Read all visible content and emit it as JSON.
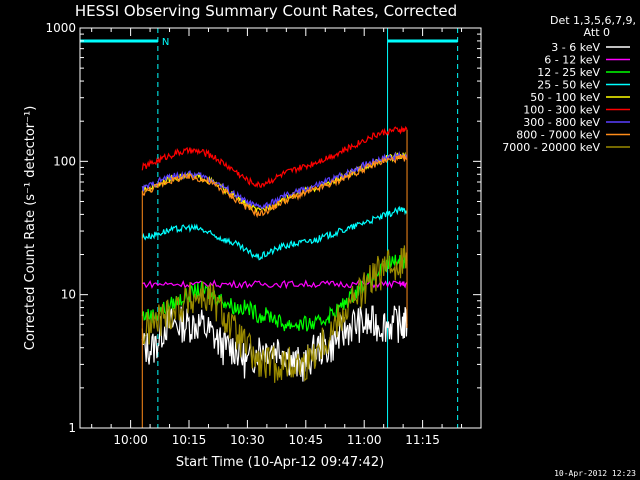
{
  "chart_data": {
    "type": "line",
    "title": "HESSI Observing Summary Count Rates, Corrected",
    "xlabel": "Start Time (10-Apr-12 09:47:42)",
    "ylabel": "Corrected Count Rate (s⁻¹ detector⁻¹)",
    "xlim_minutes": [
      -13,
      90
    ],
    "x_ticks": [
      {
        "minute": 0,
        "label": "10:00"
      },
      {
        "minute": 15,
        "label": "10:15"
      },
      {
        "minute": 30,
        "label": "10:30"
      },
      {
        "minute": 45,
        "label": "10:45"
      },
      {
        "minute": 60,
        "label": "11:00"
      },
      {
        "minute": 75,
        "label": "11:15"
      }
    ],
    "y_scale": "log",
    "ylim": [
      1,
      1000
    ],
    "y_ticks": [
      {
        "value": 1,
        "label": "1"
      },
      {
        "value": 10,
        "label": "10"
      },
      {
        "value": 100,
        "label": "100"
      },
      {
        "value": 1000,
        "label": "1000"
      }
    ],
    "legend_header_1": "Det 1,3,5,6,7,9,",
    "legend_header_2": "Att 0",
    "legend_position": "right",
    "night_label": "N",
    "night_bars": [
      {
        "start_minute": -13,
        "end_minute": 7
      },
      {
        "start_minute": 66,
        "end_minute": 84
      }
    ],
    "solid_cyan_lines": [
      -13,
      66
    ],
    "dashed_cyan_lines": [
      7,
      84
    ],
    "series": [
      {
        "name": "3 - 6 keV",
        "color": "#ffffff",
        "x": [
          3,
          6,
          9,
          12,
          15,
          18,
          21,
          24,
          27,
          30,
          33,
          36,
          39,
          42,
          45,
          48,
          51,
          54,
          57,
          60,
          63,
          66,
          69,
          71
        ],
        "values": [
          4,
          4,
          6,
          6,
          6,
          6,
          5,
          4,
          4,
          3,
          4,
          4,
          4,
          3,
          3,
          4,
          4,
          5,
          6,
          6,
          6,
          6,
          6,
          6
        ]
      },
      {
        "name": "6 - 12 keV",
        "color": "#ff00ff",
        "x": [
          3,
          9,
          15,
          21,
          27,
          33,
          39,
          45,
          51,
          57,
          63,
          69,
          71
        ],
        "values": [
          12,
          12,
          12,
          12,
          12,
          12,
          12,
          12,
          12,
          12,
          12,
          12,
          12
        ]
      },
      {
        "name": "12 - 25 keV",
        "color": "#00ff00",
        "x": [
          3,
          6,
          9,
          12,
          15,
          18,
          21,
          24,
          27,
          30,
          33,
          36,
          39,
          42,
          45,
          48,
          51,
          54,
          57,
          60,
          63,
          66,
          69,
          71
        ],
        "values": [
          7,
          7,
          8,
          9,
          10,
          11,
          10,
          9,
          8,
          8,
          7,
          7,
          6,
          6,
          6,
          6,
          7,
          8,
          10,
          12,
          14,
          17,
          18,
          18
        ]
      },
      {
        "name": "25 - 50 keV",
        "color": "#00ffff",
        "x": [
          3,
          6,
          9,
          12,
          15,
          18,
          21,
          24,
          27,
          30,
          33,
          36,
          39,
          42,
          45,
          48,
          51,
          54,
          57,
          60,
          63,
          66,
          69,
          71
        ],
        "values": [
          27,
          28,
          30,
          31,
          32,
          31,
          28,
          26,
          24,
          21,
          19,
          21,
          23,
          24,
          25,
          26,
          28,
          30,
          32,
          35,
          37,
          40,
          43,
          43
        ]
      },
      {
        "name": "50 - 100 keV",
        "color": "#ffff00",
        "x": [
          3,
          6,
          9,
          12,
          15,
          18,
          21,
          24,
          27,
          30,
          33,
          36,
          39,
          42,
          45,
          48,
          51,
          54,
          57,
          60,
          63,
          66,
          69,
          71
        ],
        "values": [
          60,
          65,
          72,
          76,
          78,
          76,
          70,
          62,
          54,
          47,
          42,
          46,
          52,
          56,
          60,
          64,
          69,
          75,
          82,
          90,
          98,
          106,
          110,
          110
        ]
      },
      {
        "name": "100 - 300 keV",
        "color": "#ff0000",
        "x": [
          3,
          6,
          9,
          12,
          15,
          18,
          21,
          24,
          27,
          30,
          33,
          36,
          39,
          42,
          45,
          48,
          51,
          54,
          57,
          60,
          63,
          66,
          69,
          71
        ],
        "values": [
          90,
          98,
          108,
          116,
          120,
          118,
          110,
          96,
          84,
          72,
          66,
          72,
          80,
          86,
          92,
          100,
          108,
          118,
          130,
          145,
          158,
          168,
          172,
          172
        ]
      },
      {
        "name": "300 - 800 keV",
        "color": "#5a3fff",
        "x": [
          3,
          6,
          9,
          12,
          15,
          18,
          21,
          24,
          27,
          30,
          33,
          36,
          39,
          42,
          45,
          48,
          51,
          54,
          57,
          60,
          63,
          66,
          69,
          71
        ],
        "values": [
          62,
          68,
          75,
          78,
          80,
          78,
          72,
          64,
          56,
          49,
          45,
          48,
          54,
          58,
          62,
          66,
          72,
          78,
          86,
          94,
          102,
          108,
          110,
          110
        ]
      },
      {
        "name": "800 - 7000 keV",
        "color": "#ff8c1a",
        "x": [
          3,
          6,
          9,
          12,
          15,
          18,
          21,
          24,
          27,
          30,
          33,
          36,
          39,
          42,
          45,
          48,
          51,
          54,
          57,
          60,
          63,
          66,
          69,
          71
        ],
        "values": [
          58,
          63,
          70,
          74,
          76,
          74,
          68,
          60,
          52,
          45,
          40,
          44,
          50,
          54,
          58,
          62,
          67,
          73,
          80,
          88,
          96,
          102,
          105,
          105
        ]
      },
      {
        "name": "7000 - 20000 keV",
        "color": "#9a8a00",
        "x": [
          3,
          6,
          9,
          12,
          15,
          18,
          21,
          24,
          27,
          30,
          33,
          36,
          39,
          42,
          45,
          48,
          51,
          54,
          57,
          60,
          63,
          66,
          69,
          71
        ],
        "values": [
          5,
          6,
          7,
          8,
          9,
          10,
          9,
          7,
          5,
          4,
          3,
          3,
          3,
          3,
          3,
          4,
          5,
          7,
          9,
          11,
          14,
          16,
          18,
          18
        ]
      }
    ]
  },
  "footer_date": "10-Apr-2012 12:23"
}
